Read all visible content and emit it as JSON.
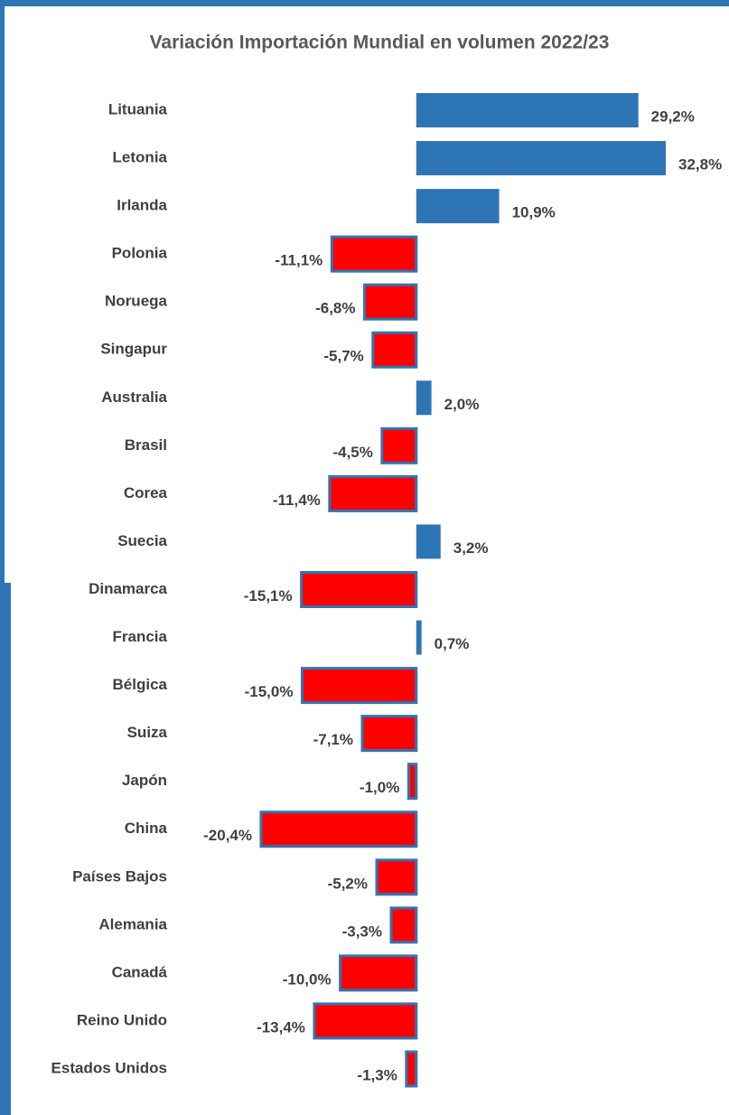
{
  "chart_data": {
    "type": "barh",
    "title": "Variación Importación Mundial en volumen 2022/23",
    "categories": [
      "Lituania",
      "Letonia",
      "Irlanda",
      "Polonia",
      "Noruega",
      "Singapur",
      "Australia",
      "Brasil",
      "Corea",
      "Suecia",
      "Dinamarca",
      "Francia",
      "Bélgica",
      "Suiza",
      "Japón",
      "China",
      "Países Bajos",
      "Alemania",
      "Canadá",
      "Reino Unido",
      "Estados Unidos"
    ],
    "values": [
      29.2,
      32.8,
      10.9,
      -11.1,
      -6.8,
      -5.7,
      2.0,
      -4.5,
      -11.4,
      3.2,
      -15.1,
      0.7,
      -15.0,
      -7.1,
      -1.0,
      -20.4,
      -5.2,
      -3.3,
      -10.0,
      -13.4,
      -1.3
    ],
    "value_labels": [
      "29,2%",
      "32,8%",
      "10,9%",
      "-11,1%",
      "-6,8%",
      "-5,7%",
      "2,0%",
      "-4,5%",
      "-11,4%",
      "3,2%",
      "-15,1%",
      "0,7%",
      "-15,0%",
      "-7,1%",
      "-1,0%",
      "-20,4%",
      "-5,2%",
      "-3,3%",
      "-10,0%",
      "-13,4%",
      "-1,3%"
    ],
    "color": "#2e75b6",
    "negative_color": "#ff0000"
  }
}
